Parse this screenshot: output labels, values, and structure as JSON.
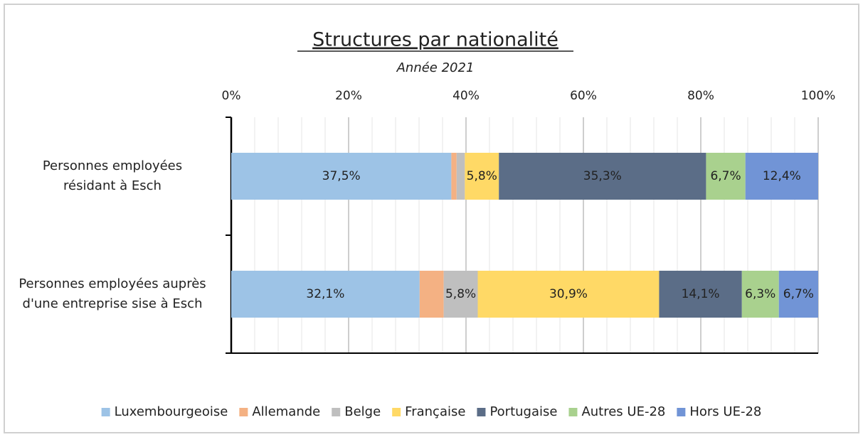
{
  "chart_data": {
    "type": "stacked-bar-horizontal",
    "title": "Structures par nationalité",
    "subtitle": "Année 2021",
    "categories": [
      "Personnes employées\nrésidant à Esch",
      "Personnes employées auprès\nd'une entreprise sise à Esch"
    ],
    "series": [
      {
        "name": "Luxembourgeoise",
        "color": "#9dc3e6",
        "values": [
          37.5,
          32.1
        ],
        "value_labels": [
          "37,5%",
          "32,1%"
        ]
      },
      {
        "name": "Allemande",
        "color": "#f4b183",
        "values": [
          0.9,
          4.1
        ],
        "value_labels": [
          null,
          null
        ]
      },
      {
        "name": "Belge",
        "color": "#bfbfbf",
        "values": [
          1.4,
          5.8
        ],
        "value_labels": [
          null,
          "5,8%"
        ]
      },
      {
        "name": "Française",
        "color": "#ffd966",
        "values": [
          5.8,
          30.9
        ],
        "value_labels": [
          "5,8%",
          "30,9%"
        ]
      },
      {
        "name": "Portugaise",
        "color": "#5b6d87",
        "values": [
          35.3,
          14.1
        ],
        "value_labels": [
          "35,3%",
          "14,1%"
        ]
      },
      {
        "name": "Autres UE-28",
        "color": "#a9d18e",
        "values": [
          6.7,
          6.3
        ],
        "value_labels": [
          "6,7%",
          "6,3%"
        ]
      },
      {
        "name": "Hors UE-28",
        "color": "#7194d6",
        "values": [
          12.4,
          6.7
        ],
        "value_labels": [
          "12,4%",
          "6,7%"
        ]
      }
    ],
    "xlim": [
      0,
      100
    ],
    "xticks": [
      {
        "value": 0,
        "label": "0%"
      },
      {
        "value": 20,
        "label": "20%"
      },
      {
        "value": 40,
        "label": "40%"
      },
      {
        "value": 60,
        "label": "60%"
      },
      {
        "value": 80,
        "label": "80%"
      },
      {
        "value": 100,
        "label": "100%"
      }
    ],
    "grid": true,
    "legend": "bottom"
  }
}
